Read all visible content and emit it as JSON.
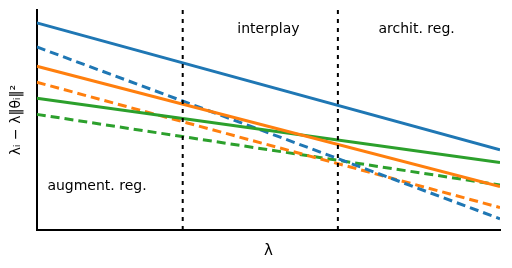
{
  "chart_data": {
    "type": "line",
    "xlabel": "λ",
    "ylabel": "λᵢ − λ‖θᵢ‖²",
    "x": [
      0.0,
      1.0
    ],
    "series": [
      {
        "color": "#1f77b4",
        "line_style": "solid",
        "values": [
          0.97,
          0.18
        ]
      },
      {
        "color": "#ff7f0e",
        "line_style": "solid",
        "values": [
          0.7,
          -0.05
        ]
      },
      {
        "color": "#2ca02c",
        "line_style": "solid",
        "values": [
          0.5,
          0.1
        ]
      },
      {
        "color": "#1f77b4",
        "line_style": "dashed",
        "values": [
          0.82,
          -0.25
        ]
      },
      {
        "color": "#ff7f0e",
        "line_style": "dashed",
        "values": [
          0.6,
          -0.18
        ]
      },
      {
        "color": "#2ca02c",
        "line_style": "dashed",
        "values": [
          0.4,
          -0.04
        ]
      }
    ],
    "vlines": [
      0.315,
      0.65
    ],
    "annotations": [
      "augment. reg.",
      "interplay",
      "archit. reg."
    ],
    "xlim": [
      0.0,
      1.0
    ],
    "ylim": [
      -0.32,
      1.05
    ],
    "tick_labels": false,
    "grid": false
  }
}
